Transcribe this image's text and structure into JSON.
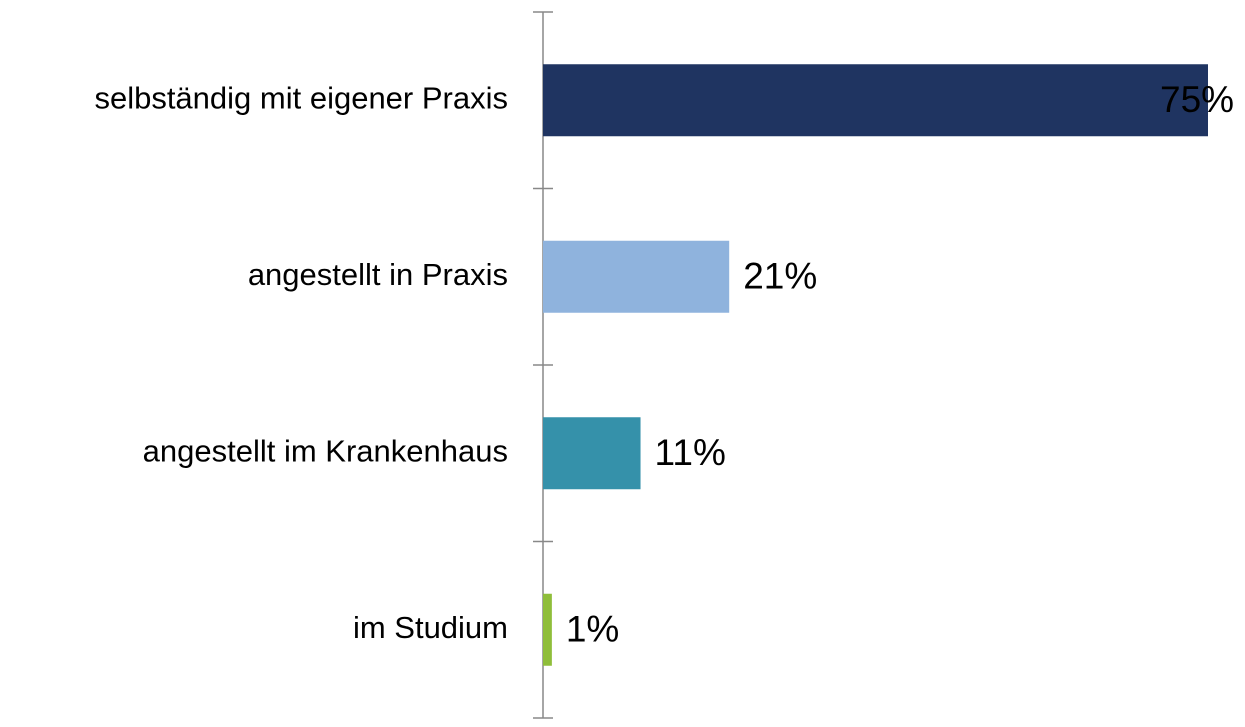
{
  "chart_data": {
    "type": "bar",
    "orientation": "horizontal",
    "categories": [
      "selbständig mit eigener Praxis",
      "angestellt in Praxis",
      "angestellt im Krankenhaus",
      "im Studium"
    ],
    "values": [
      75,
      21,
      11,
      1
    ],
    "value_labels": [
      "75%",
      "21%",
      "11%",
      "1%"
    ],
    "colors": [
      "#1f3461",
      "#8fb3dd",
      "#3591aa",
      "#8fbe3a"
    ]
  }
}
